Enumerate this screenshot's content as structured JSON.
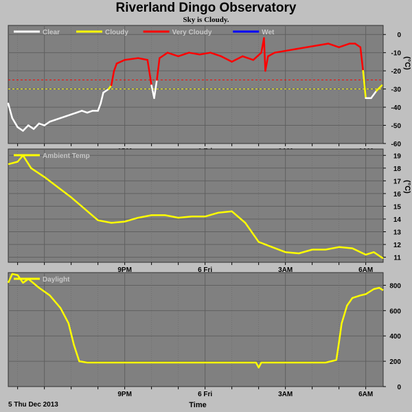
{
  "header": {
    "title": "Riverland Dingo Observatory",
    "subtitle": "Sky is Cloudy."
  },
  "footer": {
    "date_label": "5 Thu Dec 2013",
    "time_label": "Time"
  },
  "colors": {
    "background": "#c0c0c0",
    "plot_bg": "#808080",
    "grid": "#5f5f5f",
    "clear": "#ffffff",
    "cloudy": "#ffff00",
    "very_cloudy": "#ff0000",
    "wet": "#0000ff"
  },
  "chart_data": [
    {
      "type": "line",
      "title": "",
      "xlabel": "Time",
      "ylabel": "(°C)",
      "x_ticks": [
        "9PM",
        "6 Fri",
        "3AM",
        "6AM"
      ],
      "x_range_hours": [
        16.65,
        30.65
      ],
      "ylim": [
        -60,
        5
      ],
      "y_ticks": [
        "0",
        "-10",
        "-20",
        "-30",
        "-40",
        "-50",
        "-60"
      ],
      "y_tick_values": [
        0,
        -10,
        -20,
        -30,
        -40,
        -50,
        -60
      ],
      "legend": [
        "Clear",
        "Cloudy",
        "Very Cloudy",
        "Wet"
      ],
      "thresholds": [
        {
          "name": "Very Cloudy",
          "value": -25,
          "color": "#ff0000"
        },
        {
          "name": "Cloudy",
          "value": -30,
          "color": "#ffff00"
        }
      ],
      "series": [
        {
          "name": "Sky",
          "points": [
            [
              16.65,
              -38
            ],
            [
              16.8,
              -46
            ],
            [
              17.0,
              -51
            ],
            [
              17.2,
              -53
            ],
            [
              17.4,
              -50
            ],
            [
              17.6,
              -52
            ],
            [
              17.8,
              -49
            ],
            [
              18.0,
              -50
            ],
            [
              18.2,
              -48
            ],
            [
              18.4,
              -47
            ],
            [
              18.6,
              -46
            ],
            [
              18.8,
              -45
            ],
            [
              19.0,
              -44
            ],
            [
              19.2,
              -43
            ],
            [
              19.4,
              -42
            ],
            [
              19.6,
              -43
            ],
            [
              19.8,
              -42
            ],
            [
              20.0,
              -42
            ],
            [
              20.1,
              -38
            ],
            [
              20.2,
              -32
            ],
            [
              20.4,
              -30
            ],
            [
              20.5,
              -28
            ],
            [
              20.6,
              -20
            ],
            [
              20.7,
              -16
            ],
            [
              21.0,
              -14
            ],
            [
              21.5,
              -13
            ],
            [
              21.85,
              -14
            ],
            [
              22.0,
              -28
            ],
            [
              22.1,
              -35
            ],
            [
              22.2,
              -25
            ],
            [
              22.3,
              -13
            ],
            [
              22.6,
              -10
            ],
            [
              23.0,
              -12
            ],
            [
              23.4,
              -10
            ],
            [
              23.8,
              -11
            ],
            [
              24.2,
              -10
            ],
            [
              24.6,
              -12
            ],
            [
              25.0,
              -15
            ],
            [
              25.4,
              -12
            ],
            [
              25.8,
              -14
            ],
            [
              26.1,
              -10
            ],
            [
              26.2,
              -2
            ],
            [
              26.25,
              -20
            ],
            [
              26.35,
              -12
            ],
            [
              26.6,
              -10
            ],
            [
              27.0,
              -9
            ],
            [
              27.4,
              -8
            ],
            [
              27.8,
              -7
            ],
            [
              28.2,
              -6
            ],
            [
              28.6,
              -5
            ],
            [
              29.0,
              -7
            ],
            [
              29.4,
              -5
            ],
            [
              29.6,
              -5
            ],
            [
              29.8,
              -7
            ],
            [
              29.9,
              -20
            ],
            [
              30.0,
              -35
            ],
            [
              30.2,
              -35
            ],
            [
              30.4,
              -31
            ],
            [
              30.6,
              -28
            ]
          ]
        }
      ]
    },
    {
      "type": "line",
      "title": "",
      "ylabel": "(°C)",
      "x_ticks": [
        "9PM",
        "6 Fri",
        "3AM",
        "6AM"
      ],
      "x_range_hours": [
        16.65,
        30.65
      ],
      "ylim": [
        10.6,
        19.5
      ],
      "y_ticks": [
        "19",
        "18",
        "17",
        "16",
        "15",
        "14",
        "13",
        "12",
        "11"
      ],
      "y_tick_values": [
        19,
        18,
        17,
        16,
        15,
        14,
        13,
        12,
        11
      ],
      "legend": [
        "Ambient Temp"
      ],
      "series": [
        {
          "name": "Ambient Temp",
          "points": [
            [
              16.65,
              18.3
            ],
            [
              17.0,
              18.5
            ],
            [
              17.2,
              19.0
            ],
            [
              17.5,
              18.0
            ],
            [
              18.0,
              17.3
            ],
            [
              18.5,
              16.5
            ],
            [
              19.0,
              15.7
            ],
            [
              19.5,
              14.8
            ],
            [
              20.0,
              13.9
            ],
            [
              20.5,
              13.7
            ],
            [
              21.0,
              13.8
            ],
            [
              21.5,
              14.1
            ],
            [
              22.0,
              14.3
            ],
            [
              22.5,
              14.3
            ],
            [
              23.0,
              14.1
            ],
            [
              23.5,
              14.2
            ],
            [
              24.0,
              14.2
            ],
            [
              24.5,
              14.5
            ],
            [
              25.0,
              14.6
            ],
            [
              25.5,
              13.7
            ],
            [
              26.0,
              12.2
            ],
            [
              26.5,
              11.8
            ],
            [
              27.0,
              11.4
            ],
            [
              27.5,
              11.3
            ],
            [
              28.0,
              11.6
            ],
            [
              28.5,
              11.6
            ],
            [
              29.0,
              11.8
            ],
            [
              29.5,
              11.7
            ],
            [
              30.0,
              11.2
            ],
            [
              30.3,
              11.4
            ],
            [
              30.65,
              10.9
            ]
          ]
        }
      ]
    },
    {
      "type": "line",
      "title": "",
      "x_ticks": [
        "9PM",
        "6 Fri",
        "3AM",
        "6AM"
      ],
      "x_range_hours": [
        16.65,
        30.65
      ],
      "ylim": [
        0,
        900
      ],
      "y_ticks": [
        "800",
        "600",
        "400",
        "200",
        "0"
      ],
      "y_tick_values": [
        800,
        600,
        400,
        200,
        0
      ],
      "legend": [
        "Daylight"
      ],
      "series": [
        {
          "name": "Daylight",
          "points": [
            [
              16.65,
              820
            ],
            [
              16.8,
              890
            ],
            [
              17.0,
              880
            ],
            [
              17.2,
              820
            ],
            [
              17.4,
              850
            ],
            [
              17.8,
              780
            ],
            [
              18.2,
              720
            ],
            [
              18.6,
              620
            ],
            [
              18.9,
              500
            ],
            [
              19.1,
              330
            ],
            [
              19.3,
              200
            ],
            [
              19.6,
              190
            ],
            [
              20.0,
              190
            ],
            [
              22.0,
              190
            ],
            [
              24.0,
              190
            ],
            [
              25.0,
              190
            ],
            [
              25.9,
              190
            ],
            [
              26.0,
              150
            ],
            [
              26.1,
              190
            ],
            [
              28.0,
              190
            ],
            [
              28.5,
              190
            ],
            [
              28.9,
              210
            ],
            [
              29.0,
              350
            ],
            [
              29.1,
              500
            ],
            [
              29.3,
              640
            ],
            [
              29.5,
              700
            ],
            [
              29.8,
              720
            ],
            [
              30.0,
              730
            ],
            [
              30.3,
              770
            ],
            [
              30.5,
              780
            ],
            [
              30.65,
              760
            ]
          ]
        }
      ]
    }
  ]
}
